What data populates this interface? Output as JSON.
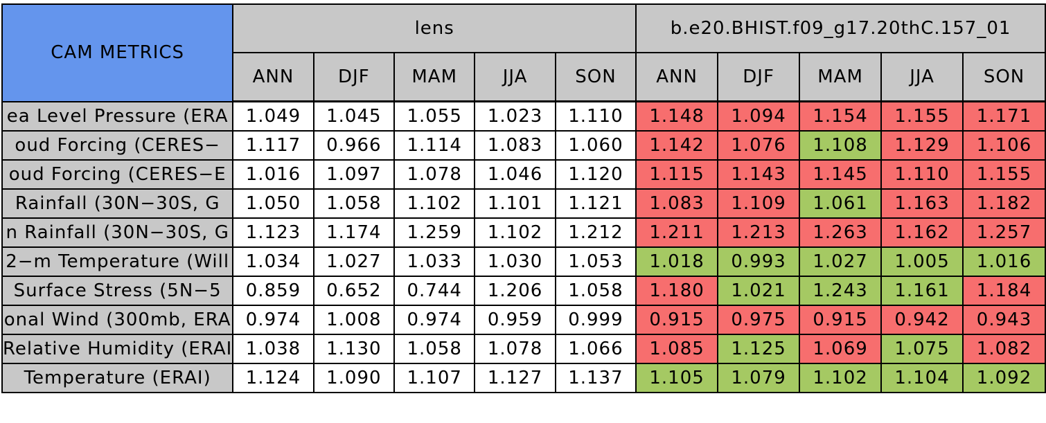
{
  "title": "CAM METRICS",
  "colors": {
    "title_blue": "#6495ED",
    "header_gray": "#C8C8C8",
    "lens_cell_white": "#FFFFFF",
    "case_fail_red": "#F76E6E",
    "case_pass_green": "#A5C963",
    "border_black": "#000000"
  },
  "chart_data": {
    "type": "table",
    "title": "CAM METRICS",
    "column_groups": [
      "lens",
      "b.e20.BHIST.f09_g17.20thC.157_01"
    ],
    "columns": [
      "ANN",
      "DJF",
      "MAM",
      "JJA",
      "SON"
    ],
    "rows": [
      {
        "label": "ea Level Pressure (ERA",
        "lens": [
          "1.049",
          "1.045",
          "1.055",
          "1.023",
          "1.110"
        ],
        "case": [
          "1.148",
          "1.094",
          "1.154",
          "1.155",
          "1.171"
        ],
        "case_colors": [
          "red",
          "red",
          "red",
          "red",
          "red"
        ]
      },
      {
        "label": "oud Forcing (CERES−",
        "lens": [
          "1.117",
          "0.966",
          "1.114",
          "1.083",
          "1.060"
        ],
        "case": [
          "1.142",
          "1.076",
          "1.108",
          "1.129",
          "1.106"
        ],
        "case_colors": [
          "red",
          "red",
          "green",
          "red",
          "red"
        ]
      },
      {
        "label": "oud Forcing (CERES−E",
        "lens": [
          "1.016",
          "1.097",
          "1.078",
          "1.046",
          "1.120"
        ],
        "case": [
          "1.115",
          "1.143",
          "1.145",
          "1.110",
          "1.155"
        ],
        "case_colors": [
          "red",
          "red",
          "red",
          "red",
          "red"
        ]
      },
      {
        "label": "Rainfall (30N−30S, G",
        "lens": [
          "1.050",
          "1.058",
          "1.102",
          "1.101",
          "1.121"
        ],
        "case": [
          "1.083",
          "1.109",
          "1.061",
          "1.163",
          "1.182"
        ],
        "case_colors": [
          "red",
          "red",
          "green",
          "red",
          "red"
        ]
      },
      {
        "label": "n Rainfall (30N−30S, G",
        "lens": [
          "1.123",
          "1.174",
          "1.259",
          "1.102",
          "1.212"
        ],
        "case": [
          "1.211",
          "1.213",
          "1.263",
          "1.162",
          "1.257"
        ],
        "case_colors": [
          "red",
          "red",
          "red",
          "red",
          "red"
        ]
      },
      {
        "label": "2−m Temperature (Will",
        "lens": [
          "1.034",
          "1.027",
          "1.033",
          "1.030",
          "1.053"
        ],
        "case": [
          "1.018",
          "0.993",
          "1.027",
          "1.005",
          "1.016"
        ],
        "case_colors": [
          "green",
          "green",
          "green",
          "green",
          "green"
        ]
      },
      {
        "label": "Surface Stress (5N−5",
        "lens": [
          "0.859",
          "0.652",
          "0.744",
          "1.206",
          "1.058"
        ],
        "case": [
          "1.180",
          "1.021",
          "1.243",
          "1.161",
          "1.184"
        ],
        "case_colors": [
          "red",
          "green",
          "green",
          "green",
          "red"
        ]
      },
      {
        "label": "onal Wind (300mb, ERA",
        "lens": [
          "0.974",
          "1.008",
          "0.974",
          "0.959",
          "0.999"
        ],
        "case": [
          "0.915",
          "0.975",
          "0.915",
          "0.942",
          "0.943"
        ],
        "case_colors": [
          "red",
          "red",
          "red",
          "red",
          "red"
        ]
      },
      {
        "label": "Relative Humidity (ERAI",
        "lens": [
          "1.038",
          "1.130",
          "1.058",
          "1.078",
          "1.066"
        ],
        "case": [
          "1.085",
          "1.125",
          "1.069",
          "1.075",
          "1.082"
        ],
        "case_colors": [
          "red",
          "green",
          "red",
          "green",
          "red"
        ]
      },
      {
        "label": "Temperature (ERAI)",
        "lens": [
          "1.124",
          "1.090",
          "1.107",
          "1.127",
          "1.137"
        ],
        "case": [
          "1.105",
          "1.079",
          "1.102",
          "1.104",
          "1.092"
        ],
        "case_colors": [
          "green",
          "green",
          "green",
          "green",
          "green"
        ]
      }
    ]
  }
}
